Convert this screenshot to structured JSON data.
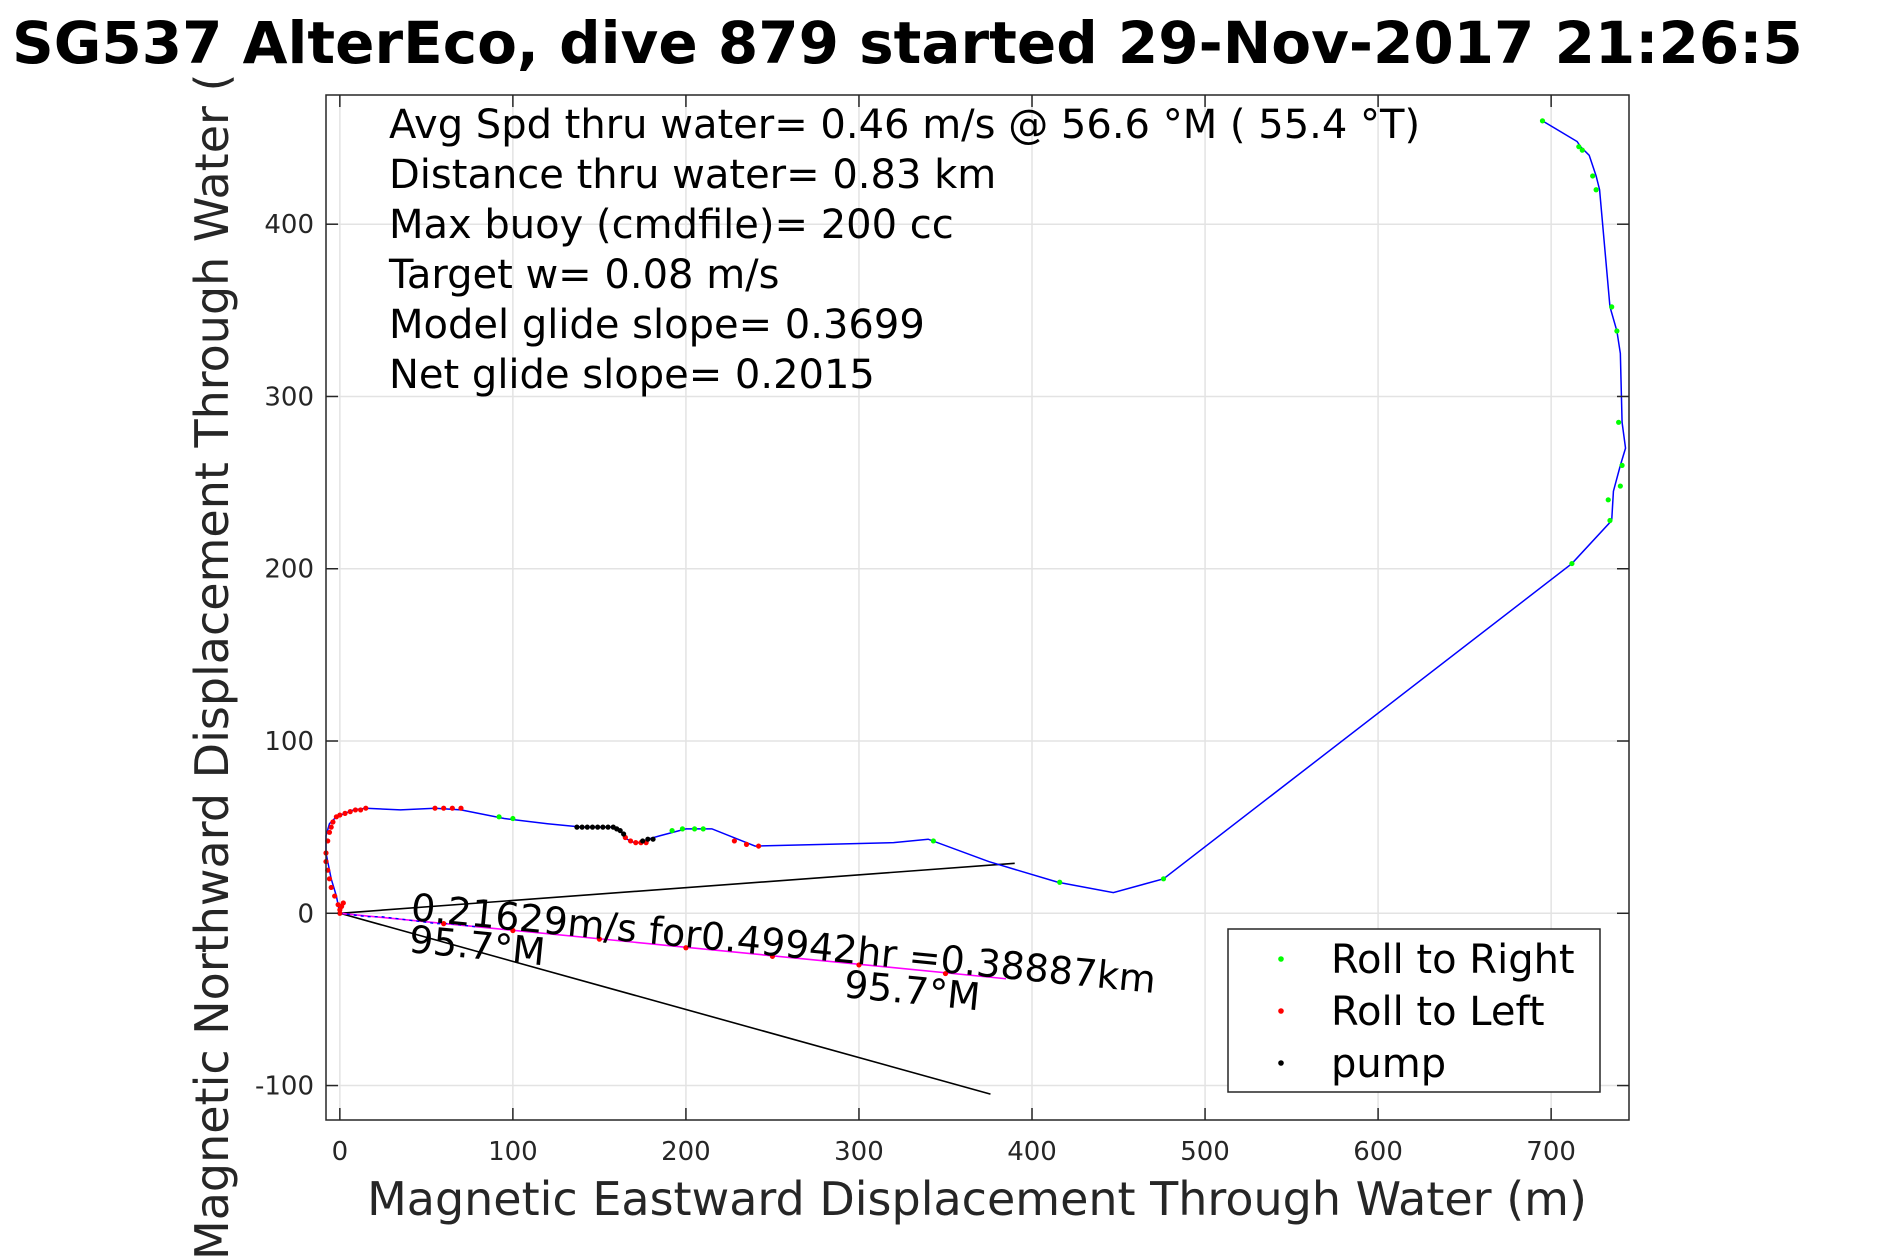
{
  "chart_data": {
    "type": "line",
    "title": "SG537 AlterEco, dive 879 started 29-Nov-2017 21:26:5",
    "xlabel": "Magnetic Eastward Displacement Through Water (m)",
    "ylabel": "Magnetic Northward Displacement Through Water (",
    "xlim": [
      -8,
      745
    ],
    "ylim": [
      -120,
      475
    ],
    "xticks": [
      0,
      100,
      200,
      300,
      400,
      500,
      600,
      700
    ],
    "yticks": [
      -100,
      0,
      100,
      200,
      300,
      400
    ],
    "grid": true,
    "legend_position": "bottom-right",
    "stats": [
      "Avg Spd thru water=  0.46 m/s @  56.6 °M ( 55.4 °T)",
      "Distance thru water=  0.83 km",
      "Max buoy (cmdfile)= 200 cc",
      "Target w= 0.08 m/s",
      "Model glide slope= 0.3699",
      "Net glide slope= 0.2015"
    ],
    "annotations": {
      "current_text": "0.21629m/s for0.49942hr =0.38887km",
      "heading_left": "95.7°M",
      "heading_right": "95.7°M"
    },
    "track": {
      "color": "#0000ff",
      "x": [
        0,
        -2,
        -5,
        -8,
        -8,
        -6,
        -2,
        3,
        8,
        15,
        35,
        55,
        70,
        95,
        120,
        140,
        150,
        158,
        162,
        166,
        170,
        174,
        178,
        185,
        200,
        215,
        230,
        240,
        280,
        320,
        340,
        375,
        415,
        447,
        476,
        712,
        735,
        736,
        740,
        743,
        741,
        740,
        738,
        734,
        728,
        726,
        722,
        717,
        715,
        695
      ],
      "y": [
        0,
        10,
        20,
        35,
        45,
        52,
        56,
        58,
        60,
        61,
        60,
        61,
        60,
        55,
        52,
        50,
        50,
        50,
        48,
        43,
        41,
        41,
        43,
        45,
        49,
        49,
        43,
        39,
        40,
        41,
        43,
        30,
        18,
        12,
        20,
        203,
        228,
        245,
        260,
        270,
        285,
        325,
        338,
        352,
        420,
        428,
        440,
        445,
        448,
        460
      ]
    },
    "current_vector": {
      "color": "#ff00ff",
      "x": [
        0,
        385
      ],
      "y": [
        0,
        -38
      ]
    },
    "current_dashes": {
      "color": "#0000ff",
      "x": [
        0,
        8,
        16,
        24,
        32,
        40,
        48,
        56,
        64,
        72,
        80
      ],
      "y": [
        0,
        -1,
        -2,
        -2,
        -3,
        -4,
        -5,
        -6,
        -6,
        -7,
        -8
      ]
    },
    "wedge_lines": [
      {
        "color": "#000000",
        "x": [
          0,
          390
        ],
        "y": [
          0,
          29
        ]
      },
      {
        "color": "#000000",
        "x": [
          0,
          376
        ],
        "y": [
          0,
          -105
        ]
      }
    ],
    "series": [
      {
        "name": "Roll to Right",
        "color": "#00ff00",
        "x": [
          92,
          100,
          192,
          198,
          205,
          210,
          343,
          416,
          476,
          712,
          734,
          740,
          741,
          739,
          738,
          735,
          733,
          726,
          724,
          716,
          718,
          695
        ],
        "y": [
          56,
          55,
          48,
          49,
          49,
          49,
          42,
          18,
          20,
          203,
          228,
          248,
          260,
          285,
          338,
          352,
          240,
          420,
          428,
          445,
          443,
          460
        ]
      },
      {
        "name": "Roll to Left",
        "color": "#ff0000",
        "x": [
          -8,
          -7,
          -6,
          -5,
          -4,
          -2,
          0,
          3,
          6,
          9,
          12,
          15,
          55,
          60,
          65,
          70,
          165,
          168,
          171,
          174,
          177,
          228,
          235,
          242,
          -1,
          -3,
          -5,
          -6,
          -7,
          -8,
          0,
          0,
          1,
          2,
          60,
          100,
          150,
          200,
          250,
          300,
          350
        ],
        "y": [
          35,
          42,
          47,
          50,
          53,
          56,
          57,
          58,
          59,
          60,
          60,
          61,
          61,
          61,
          61,
          61,
          44,
          42,
          41,
          41,
          41,
          42,
          40,
          39,
          5,
          10,
          15,
          20,
          25,
          30,
          0,
          2,
          4,
          6,
          -6,
          -10,
          -15,
          -20,
          -25,
          -30,
          -35
        ]
      },
      {
        "name": "pump",
        "color": "#000000",
        "x": [
          137,
          140,
          143,
          146,
          149,
          152,
          155,
          158,
          160,
          162,
          164,
          175,
          178,
          181
        ],
        "y": [
          50,
          50,
          50,
          50,
          50,
          50,
          50,
          50,
          49,
          48,
          46,
          42,
          43,
          43
        ]
      }
    ]
  }
}
